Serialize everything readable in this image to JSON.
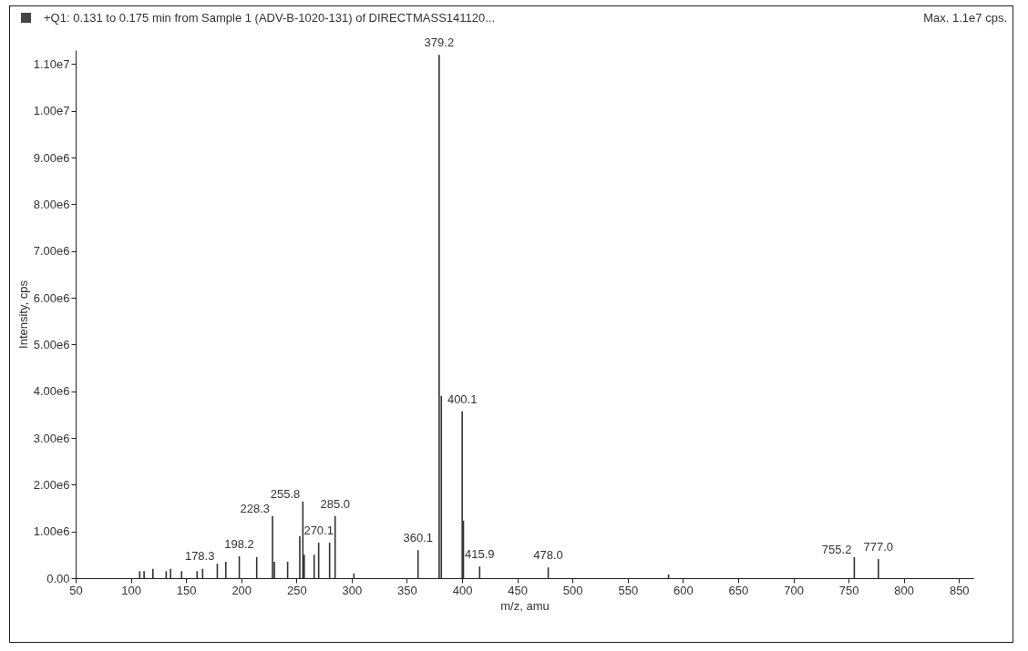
{
  "chart_data": {
    "type": "bar",
    "title": "+Q1: 0.131 to 0.175 min from Sample 1 (ADV-B-1020-131) of DIRECTMASS141120...",
    "subtitle": "Max. 1.1e7 cps.",
    "xlabel": "m/z, amu",
    "ylabel": "Intensity, cps",
    "x": [
      108,
      112,
      120,
      132,
      136,
      146,
      160,
      165,
      178.3,
      186,
      198.2,
      214,
      228.3,
      230,
      242,
      253,
      255.8,
      257,
      266,
      270.1,
      280,
      285.0,
      302,
      360.1,
      379.2,
      381.2,
      400.1,
      401.2,
      415.9,
      478.0,
      587,
      755.2,
      777.0
    ],
    "series": [
      {
        "color": "#333333",
        "values": [
          150000,
          150000,
          200000,
          150000,
          200000,
          150000,
          150000,
          200000,
          310000,
          350000,
          470000,
          450000,
          1330000,
          350000,
          350000,
          900000,
          1640000,
          500000,
          500000,
          760000,
          760000,
          1330000,
          100000,
          600000,
          11200000,
          3900000,
          3570000,
          1230000,
          250000,
          230000,
          80000,
          450000,
          410000
        ]
      }
    ],
    "xlim": [
      50,
      863
    ],
    "xticks": [
      50,
      100,
      150,
      200,
      250,
      300,
      350,
      400,
      450,
      500,
      550,
      600,
      650,
      700,
      750,
      800,
      850
    ],
    "ylim": [
      0,
      11300000
    ],
    "yticks": [
      {
        "value": 0,
        "label": "0.00"
      },
      {
        "value": 1000000,
        "label": "1.00e6"
      },
      {
        "value": 2000000,
        "label": "2.00e6"
      },
      {
        "value": 3000000,
        "label": "3.00e6"
      },
      {
        "value": 4000000,
        "label": "4.00e6"
      },
      {
        "value": 5000000,
        "label": "5.00e6"
      },
      {
        "value": 6000000,
        "label": "6.00e6"
      },
      {
        "value": 7000000,
        "label": "7.00e6"
      },
      {
        "value": 8000000,
        "label": "8.00e6"
      },
      {
        "value": 9000000,
        "label": "9.00e6"
      },
      {
        "value": 10000000,
        "label": "1.00e7"
      },
      {
        "value": 11000000,
        "label": "1.10e7"
      }
    ],
    "annotations": [
      {
        "text": "178.3",
        "x": 178.3,
        "y": 310000
      },
      {
        "text": "198.2",
        "x": 198.2,
        "y": 470000
      },
      {
        "text": "228.3",
        "x": 228.3,
        "y": 1330000
      },
      {
        "text": "255.8",
        "x": 255.8,
        "y": 1640000
      },
      {
        "text": "270.1",
        "x": 270.1,
        "y": 760000
      },
      {
        "text": "285.0",
        "x": 285.0,
        "y": 1330000
      },
      {
        "text": "360.1",
        "x": 360.1,
        "y": 600000
      },
      {
        "text": "379.2",
        "x": 379.2,
        "y": 11200000
      },
      {
        "text": "400.1",
        "x": 400.1,
        "y": 3570000
      },
      {
        "text": "415.9",
        "x": 415.9,
        "y": 250000
      },
      {
        "text": "478.0",
        "x": 478.0,
        "y": 230000
      },
      {
        "text": "755.2",
        "x": 755.2,
        "y": 450000
      },
      {
        "text": "777.0",
        "x": 777.0,
        "y": 410000
      }
    ],
    "grid": false,
    "legend": false
  }
}
